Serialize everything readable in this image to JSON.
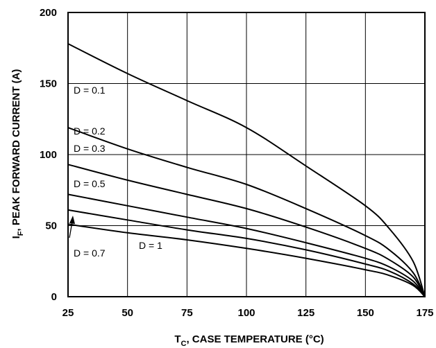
{
  "chart_data": {
    "type": "line",
    "xlabel_main": "T",
    "xlabel_sub": "C",
    "xlabel_rest": ", CASE TEMPERATURE (°C)",
    "ylabel_main": "I",
    "ylabel_sub": "F",
    "ylabel_rest": ", PEAK FORWARD CURRENT (A)",
    "xlim": [
      25,
      175
    ],
    "ylim": [
      0,
      200
    ],
    "xticks": [
      25,
      50,
      75,
      100,
      125,
      150,
      175
    ],
    "yticks": [
      0,
      50,
      100,
      150,
      200
    ],
    "grid": true,
    "x": [
      25,
      50,
      75,
      100,
      125,
      150,
      160,
      170,
      175
    ],
    "series": [
      {
        "name": "D = 0.1",
        "values": [
          178,
          157,
          138,
          119,
          92,
          64,
          48,
          25,
          0
        ]
      },
      {
        "name": "D = 0.2",
        "values": [
          119,
          104,
          91,
          79,
          62,
          43,
          33,
          17,
          0
        ]
      },
      {
        "name": "D = 0.3",
        "values": [
          93,
          82,
          72,
          62,
          49,
          34,
          26,
          14,
          0
        ]
      },
      {
        "name": "D = 0.5",
        "values": [
          72,
          64,
          56,
          48,
          38,
          27,
          21,
          11,
          0
        ]
      },
      {
        "name": "D = 0.7",
        "values": [
          61,
          54,
          47,
          41,
          33,
          23,
          18,
          9,
          0
        ]
      },
      {
        "name": "D = 1",
        "values": [
          51,
          45,
          40,
          34,
          27,
          19,
          15,
          8,
          0
        ]
      }
    ]
  }
}
